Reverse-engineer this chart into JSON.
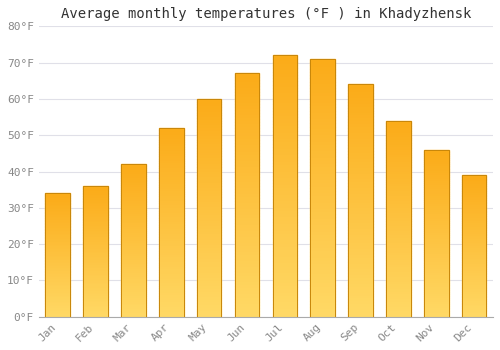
{
  "title": "Average monthly temperatures (°F ) in Khadyzhensk",
  "months": [
    "Jan",
    "Feb",
    "Mar",
    "Apr",
    "May",
    "Jun",
    "Jul",
    "Aug",
    "Sep",
    "Oct",
    "Nov",
    "Dec"
  ],
  "values": [
    34,
    36,
    42,
    52,
    60,
    67,
    72,
    71,
    64,
    54,
    46,
    39
  ],
  "bar_color_top": "#FBAB18",
  "bar_color_bottom": "#FFD966",
  "bar_edge_color": "#C8860A",
  "ylim": [
    0,
    80
  ],
  "yticks": [
    0,
    10,
    20,
    30,
    40,
    50,
    60,
    70,
    80
  ],
  "ytick_labels": [
    "0°F",
    "10°F",
    "20°F",
    "30°F",
    "40°F",
    "50°F",
    "60°F",
    "70°F",
    "80°F"
  ],
  "background_color": "#FFFFFF",
  "grid_color": "#E0E0E8",
  "title_fontsize": 10,
  "tick_fontsize": 8,
  "tick_color": "#888888"
}
